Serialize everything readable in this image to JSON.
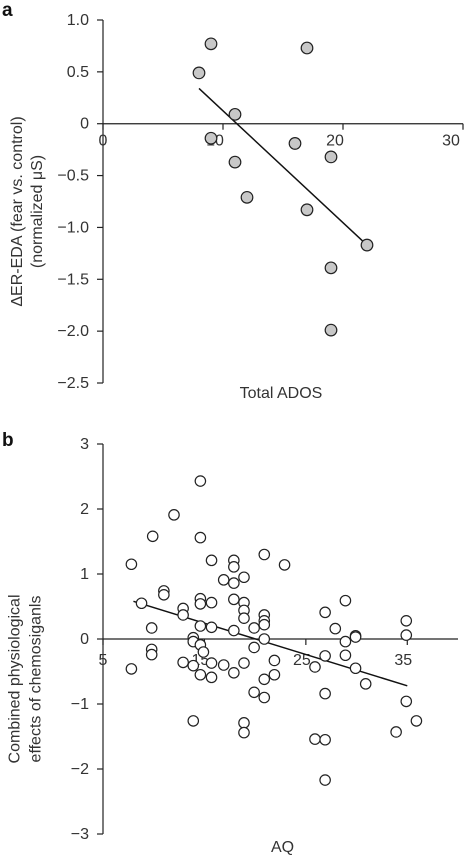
{
  "chart_data": [
    {
      "type": "scatter",
      "panel_label": "a",
      "xlabel": "Total ADOS",
      "ylabel_lines": [
        "ΔER-EDA (fear vs. control)",
        "(normalized μS)"
      ],
      "xlim": [
        0,
        30
      ],
      "ylim": [
        -2.5,
        1.0
      ],
      "x_ticks": [
        "0",
        "10",
        "20",
        "30"
      ],
      "x_tick_values": [
        0,
        10,
        20,
        30
      ],
      "y_ticks": [
        "1.0",
        "0.5",
        "0",
        "−0.5",
        "−1.0",
        "−1.5",
        "−2.0",
        "−2.5"
      ],
      "y_tick_values": [
        1.0,
        0.5,
        0,
        -0.5,
        -1.0,
        -1.5,
        -2.0,
        -2.5
      ],
      "marker_fill": "#c8c8c8",
      "points": [
        {
          "x": 8,
          "y": 0.49
        },
        {
          "x": 9,
          "y": 0.77
        },
        {
          "x": 11,
          "y": 0.09
        },
        {
          "x": 9,
          "y": -0.14
        },
        {
          "x": 11,
          "y": -0.37
        },
        {
          "x": 12,
          "y": -0.71
        },
        {
          "x": 16,
          "y": -0.19
        },
        {
          "x": 17,
          "y": 0.73
        },
        {
          "x": 17,
          "y": -0.83
        },
        {
          "x": 19,
          "y": -0.32
        },
        {
          "x": 19,
          "y": -1.39
        },
        {
          "x": 19,
          "y": -1.99
        },
        {
          "x": 22,
          "y": -1.17
        }
      ],
      "fit_line": [
        {
          "x": 8,
          "y": 0.34
        },
        {
          "x": 22,
          "y": -1.17
        }
      ]
    },
    {
      "type": "scatter",
      "panel_label": "b",
      "xlabel": "AQ",
      "ylabel_lines": [
        "Combined physiological",
        "effects of chemosiganls"
      ],
      "xlim": [
        5,
        40
      ],
      "ylim": [
        -3,
        3
      ],
      "x_ticks": [
        "5",
        "15",
        "25",
        "35"
      ],
      "x_tick_values": [
        5,
        15,
        25,
        35
      ],
      "y_ticks": [
        "3",
        "2",
        "1",
        "0",
        "−1",
        "−2",
        "−3"
      ],
      "y_tick_values": [
        3,
        2,
        1,
        0,
        -1,
        -2,
        -3
      ],
      "marker_fill": "#ffffff",
      "points": [
        {
          "x": 7.8,
          "y": 1.15
        },
        {
          "x": 7.8,
          "y": -0.46
        },
        {
          "x": 8.8,
          "y": 0.55
        },
        {
          "x": 9.9,
          "y": 1.58
        },
        {
          "x": 9.8,
          "y": 0.17
        },
        {
          "x": 9.8,
          "y": -0.16
        },
        {
          "x": 9.8,
          "y": -0.24
        },
        {
          "x": 11.0,
          "y": 0.74
        },
        {
          "x": 11.0,
          "y": 0.68
        },
        {
          "x": 12.0,
          "y": 1.91
        },
        {
          "x": 12.9,
          "y": 0.47
        },
        {
          "x": 12.9,
          "y": 0.37
        },
        {
          "x": 12.9,
          "y": -0.36
        },
        {
          "x": 13.9,
          "y": 0.02
        },
        {
          "x": 13.9,
          "y": -0.04
        },
        {
          "x": 13.9,
          "y": -0.41
        },
        {
          "x": 13.9,
          "y": -1.26
        },
        {
          "x": 14.6,
          "y": 2.43
        },
        {
          "x": 14.6,
          "y": 1.56
        },
        {
          "x": 14.6,
          "y": 0.62
        },
        {
          "x": 14.6,
          "y": 0.54
        },
        {
          "x": 14.6,
          "y": 0.2
        },
        {
          "x": 14.6,
          "y": -0.09
        },
        {
          "x": 14.6,
          "y": -0.55
        },
        {
          "x": 14.9,
          "y": -0.2
        },
        {
          "x": 15.7,
          "y": 1.21
        },
        {
          "x": 15.7,
          "y": 0.56
        },
        {
          "x": 15.7,
          "y": 0.18
        },
        {
          "x": 15.7,
          "y": -0.37
        },
        {
          "x": 15.7,
          "y": -0.59
        },
        {
          "x": 16.9,
          "y": 0.91
        },
        {
          "x": 16.9,
          "y": -0.4
        },
        {
          "x": 17.9,
          "y": 1.21
        },
        {
          "x": 17.9,
          "y": 1.11
        },
        {
          "x": 17.9,
          "y": 0.86
        },
        {
          "x": 17.9,
          "y": 0.61
        },
        {
          "x": 17.9,
          "y": 0.13
        },
        {
          "x": 17.9,
          "y": -0.52
        },
        {
          "x": 18.9,
          "y": 0.95
        },
        {
          "x": 18.9,
          "y": 0.56
        },
        {
          "x": 18.9,
          "y": 0.44
        },
        {
          "x": 18.9,
          "y": 0.32
        },
        {
          "x": 18.9,
          "y": -0.37
        },
        {
          "x": 18.9,
          "y": -1.29
        },
        {
          "x": 18.9,
          "y": -1.44
        },
        {
          "x": 19.9,
          "y": 0.17
        },
        {
          "x": 19.9,
          "y": -0.13
        },
        {
          "x": 19.9,
          "y": -0.82
        },
        {
          "x": 20.9,
          "y": 1.3
        },
        {
          "x": 20.9,
          "y": 0.37
        },
        {
          "x": 20.9,
          "y": 0.28
        },
        {
          "x": 20.9,
          "y": 0.22
        },
        {
          "x": 20.9,
          "y": 0.0
        },
        {
          "x": 20.9,
          "y": -0.62
        },
        {
          "x": 20.9,
          "y": -0.9
        },
        {
          "x": 21.9,
          "y": -0.33
        },
        {
          "x": 21.9,
          "y": -0.55
        },
        {
          "x": 22.9,
          "y": 1.14
        },
        {
          "x": 25.9,
          "y": -0.43
        },
        {
          "x": 25.9,
          "y": -1.54
        },
        {
          "x": 26.9,
          "y": 0.41
        },
        {
          "x": 26.9,
          "y": -0.26
        },
        {
          "x": 26.9,
          "y": -0.84
        },
        {
          "x": 26.9,
          "y": -1.55
        },
        {
          "x": 26.9,
          "y": -2.17
        },
        {
          "x": 27.9,
          "y": 0.16
        },
        {
          "x": 28.9,
          "y": 0.59
        },
        {
          "x": 28.9,
          "y": -0.04
        },
        {
          "x": 28.9,
          "y": -0.25
        },
        {
          "x": 29.9,
          "y": 0.05
        },
        {
          "x": 29.9,
          "y": 0.03
        },
        {
          "x": 29.9,
          "y": -0.45
        },
        {
          "x": 30.9,
          "y": -0.69
        },
        {
          "x": 33.9,
          "y": -1.43
        },
        {
          "x": 34.9,
          "y": 0.28
        },
        {
          "x": 34.9,
          "y": 0.06
        },
        {
          "x": 34.9,
          "y": -0.96
        },
        {
          "x": 35.9,
          "y": -1.26
        }
      ],
      "fit_line": [
        {
          "x": 8,
          "y": 0.58
        },
        {
          "x": 35,
          "y": -0.72
        }
      ]
    }
  ]
}
